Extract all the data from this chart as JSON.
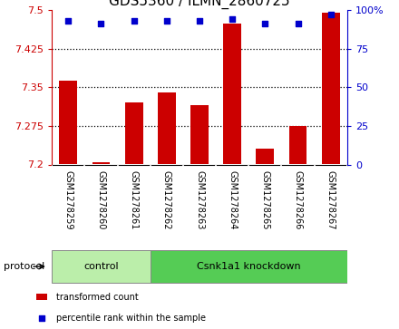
{
  "title": "GDS5360 / ILMN_2860725",
  "samples": [
    "GSM1278259",
    "GSM1278260",
    "GSM1278261",
    "GSM1278262",
    "GSM1278263",
    "GSM1278264",
    "GSM1278265",
    "GSM1278266",
    "GSM1278267"
  ],
  "transformed_counts": [
    7.362,
    7.205,
    7.32,
    7.34,
    7.315,
    7.473,
    7.23,
    7.275,
    7.495
  ],
  "percentile_ranks": [
    93,
    91,
    93,
    93,
    93,
    94,
    91,
    91,
    97
  ],
  "left_ylim": [
    7.2,
    7.5
  ],
  "left_yticks": [
    7.2,
    7.275,
    7.35,
    7.425,
    7.5
  ],
  "left_yticklabels": [
    "7.2",
    "7.275",
    "7.35",
    "7.425",
    "7.5"
  ],
  "right_ylim": [
    0,
    100
  ],
  "right_yticks": [
    0,
    25,
    50,
    75,
    100
  ],
  "right_yticklabels": [
    "0",
    "25",
    "50",
    "75",
    "100%"
  ],
  "bar_color": "#cc0000",
  "square_color": "#0000cc",
  "bg_color": "#ffffff",
  "gray_area_color": "#cccccc",
  "control_color": "#bbeeaa",
  "knockdown_color": "#55cc55",
  "n_control": 3,
  "n_knockdown": 6,
  "control_label": "control",
  "knockdown_label": "Csnk1a1 knockdown",
  "protocol_label": "protocol",
  "legend_bar_label": "transformed count",
  "legend_square_label": "percentile rank within the sample",
  "title_fontsize": 11,
  "tick_fontsize": 8,
  "label_fontsize": 8,
  "sample_fontsize": 7,
  "bar_width": 0.55
}
